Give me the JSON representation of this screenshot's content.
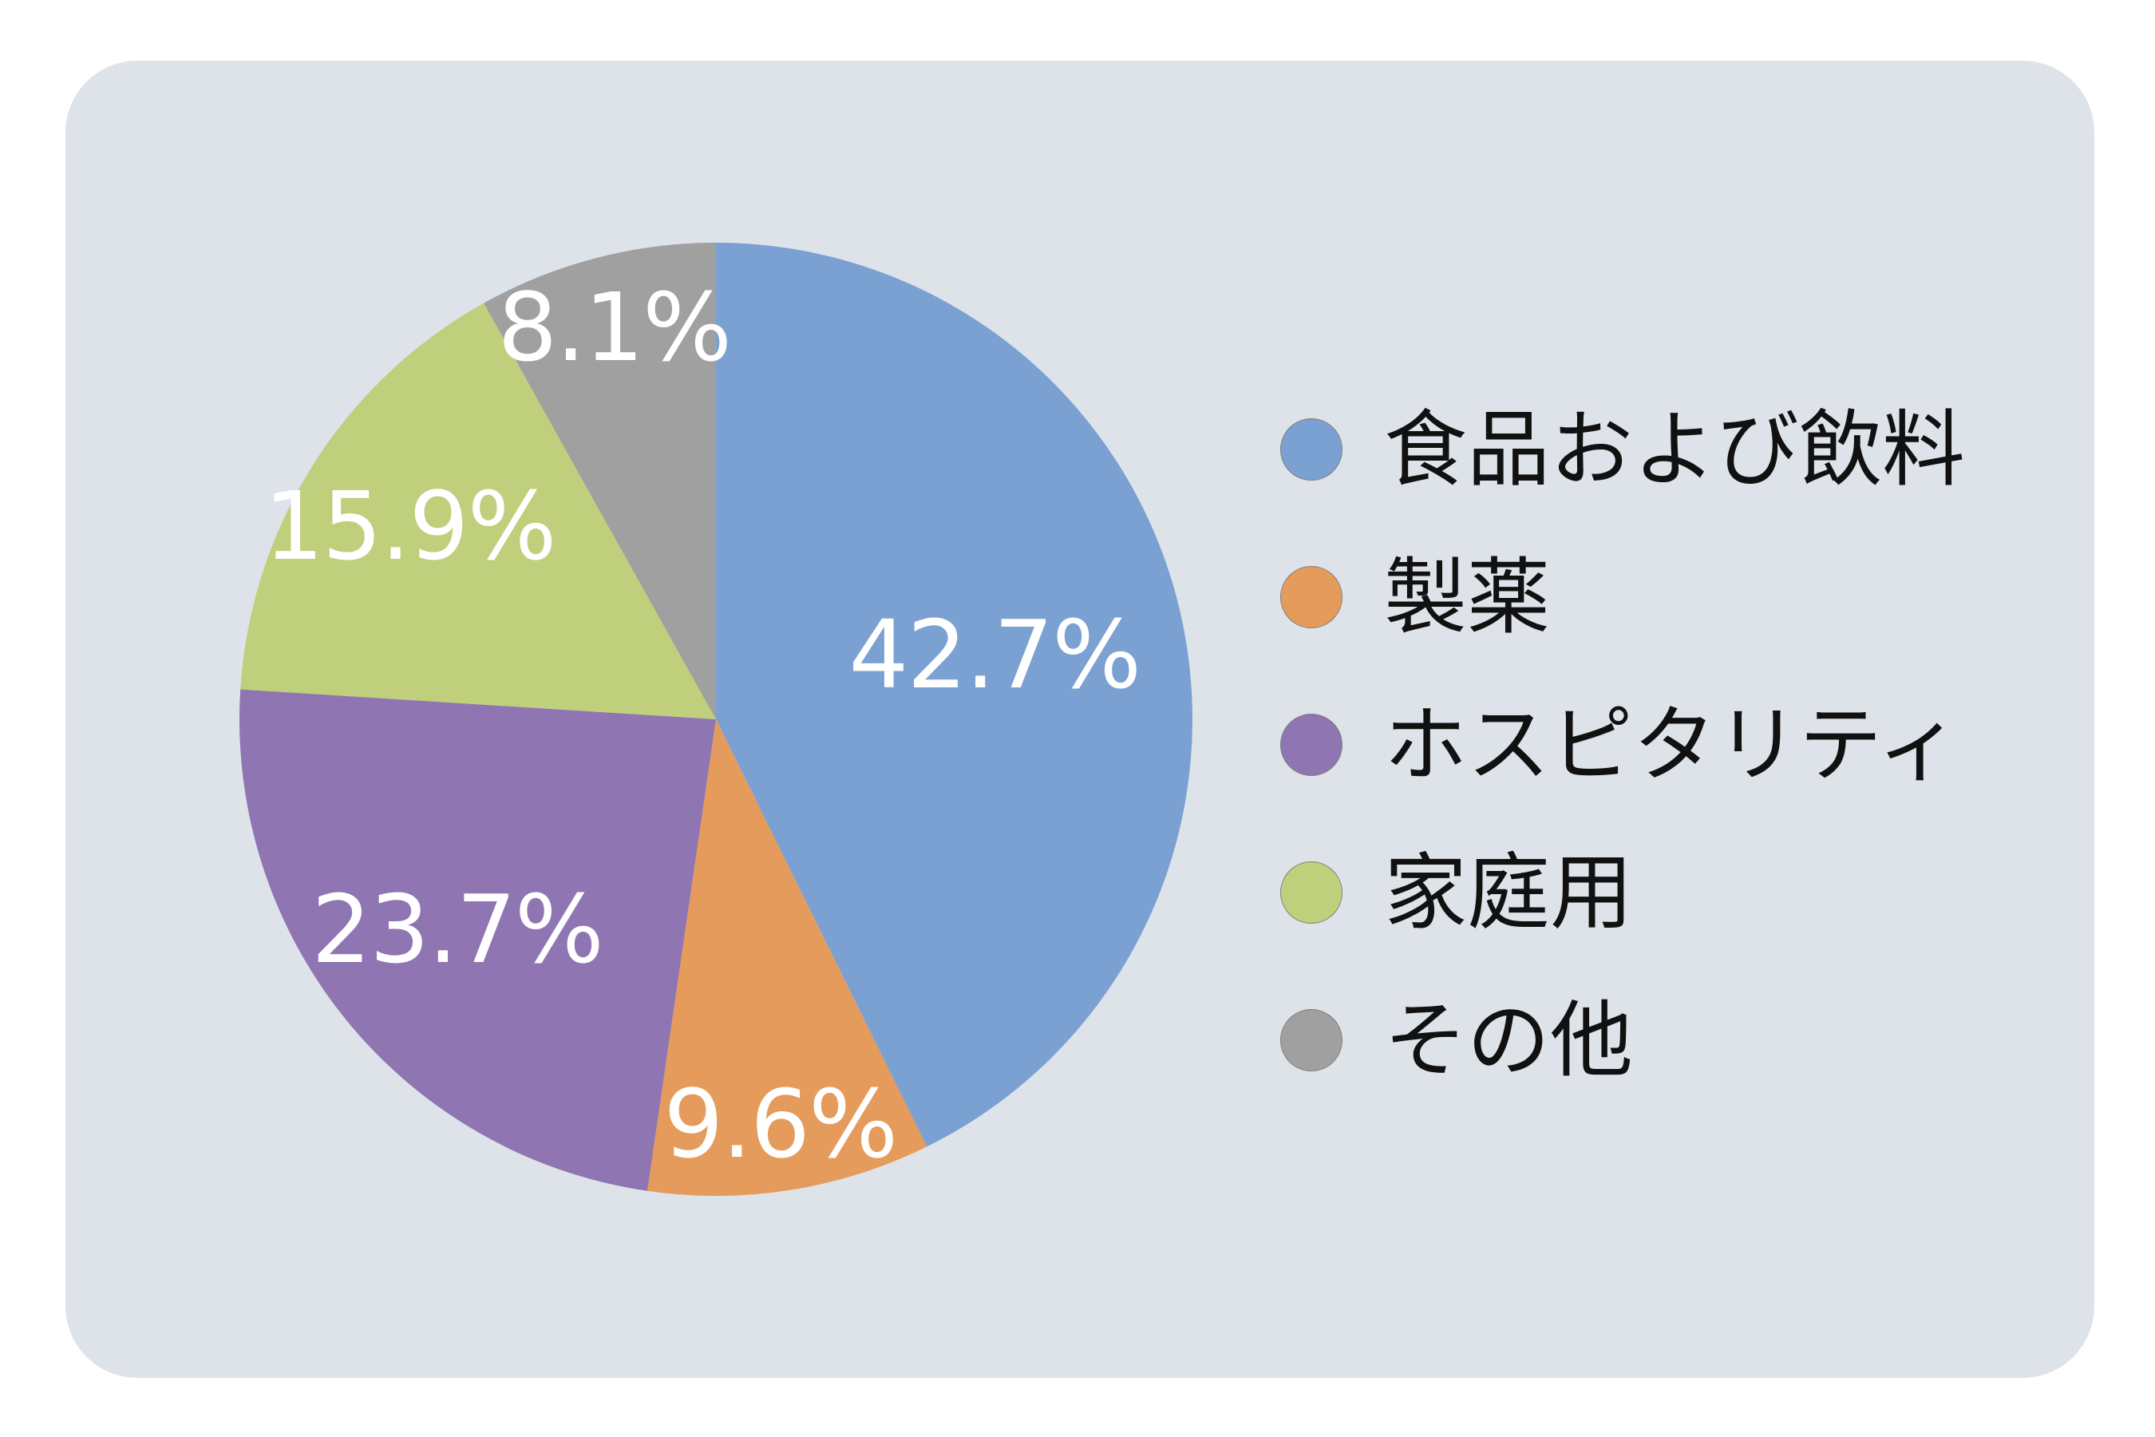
{
  "chart_data": {
    "type": "pie",
    "start_angle_deg": 0,
    "direction": "clockwise",
    "legend_position": "right",
    "slices": [
      {
        "name": "食品および飲料",
        "value": 42.7,
        "label": "42.7%",
        "color": "#7aa1d1"
      },
      {
        "name": "製薬",
        "value": 9.6,
        "label": "9.6%",
        "color": "#e59b5c"
      },
      {
        "name": "ホスピタリティ",
        "value": 23.7,
        "label": "23.7%",
        "color": "#8f75b1"
      },
      {
        "name": "家庭用",
        "value": 15.9,
        "label": "15.9%",
        "color": "#bfcf7b"
      },
      {
        "name": "その他",
        "value": 8.1,
        "label": "8.1%",
        "color": "#a0a0a0"
      }
    ]
  },
  "legend": {
    "items": [
      {
        "label": "食品および飲料",
        "color": "#7aa1d1"
      },
      {
        "label": "製薬",
        "color": "#e59b5c"
      },
      {
        "label": "ホスピタリティ",
        "color": "#8f75b1"
      },
      {
        "label": "家庭用",
        "color": "#bfcf7b"
      },
      {
        "label": "その他",
        "color": "#a0a0a0"
      }
    ]
  },
  "colors": {
    "panel_background": "#dee3ea",
    "label_text": "#ffffff",
    "legend_text": "#111111"
  }
}
